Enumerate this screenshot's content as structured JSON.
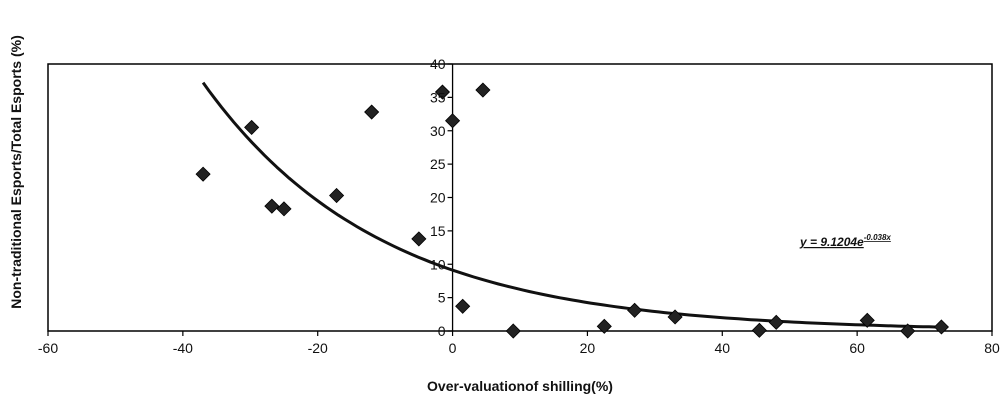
{
  "chart_data": {
    "type": "scatter",
    "title": "",
    "xlabel": "Over-valuationof shilling(%)",
    "ylabel": "Non-traditional Esports/Total Esports (%)",
    "xlim": [
      -60,
      80
    ],
    "ylim": [
      0,
      40
    ],
    "x_ticks": [
      "-60",
      "-40",
      "-20",
      "0",
      "20",
      "40",
      "60",
      "80"
    ],
    "y_ticks": [
      "0",
      "5",
      "10",
      "15",
      "20",
      "25",
      "30",
      "35",
      "40"
    ],
    "grid": false,
    "legend": "none",
    "series": [
      {
        "points": [
          {
            "x": -37.0,
            "y": 23.5
          },
          {
            "x": -29.8,
            "y": 30.5
          },
          {
            "x": -26.8,
            "y": 18.7
          },
          {
            "x": -25.0,
            "y": 18.3
          },
          {
            "x": -17.2,
            "y": 20.3
          },
          {
            "x": -12.0,
            "y": 32.8
          },
          {
            "x": -5.0,
            "y": 13.8
          },
          {
            "x": -1.5,
            "y": 35.8
          },
          {
            "x": 0.0,
            "y": 31.5
          },
          {
            "x": 1.5,
            "y": 3.7
          },
          {
            "x": 4.5,
            "y": 36.1
          },
          {
            "x": 9.0,
            "y": 0.0
          },
          {
            "x": 22.5,
            "y": 0.7
          },
          {
            "x": 27.0,
            "y": 3.1
          },
          {
            "x": 33.0,
            "y": 2.1
          },
          {
            "x": 45.5,
            "y": 0.1
          },
          {
            "x": 48.0,
            "y": 1.3
          },
          {
            "x": 61.5,
            "y": 1.6
          },
          {
            "x": 67.5,
            "y": 0.0
          },
          {
            "x": 72.5,
            "y": 0.6
          }
        ]
      }
    ],
    "trendline": {
      "type": "exponential",
      "a": 9.1204,
      "b": -0.038,
      "x_range": [
        -37,
        72.5
      ],
      "label_main": "y = 9.1204e",
      "label_exponent": "-0.038x"
    },
    "colors": {
      "marker": "#222222",
      "line": "#111111",
      "axis": "#000000"
    }
  }
}
